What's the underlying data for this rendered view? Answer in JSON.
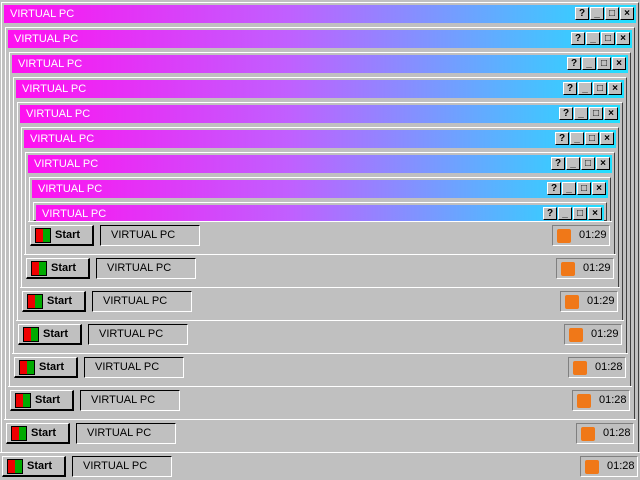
{
  "windows": [
    {
      "title": "VIRTUAL PC"
    },
    {
      "title": "VIRTUAL PC"
    },
    {
      "title": "VIRTUAL PC"
    },
    {
      "title": "VIRTUAL PC"
    },
    {
      "title": "VIRTUAL PC"
    },
    {
      "title": "VIRTUAL PC"
    },
    {
      "title": "VIRTUAL PC"
    },
    {
      "title": "VIRTUAL PC"
    },
    {
      "title": "VIRTUAL PC"
    }
  ],
  "taskbars": [
    {
      "start": "Start",
      "task": "VIRTUAL PC",
      "time": "01:29"
    },
    {
      "start": "Start",
      "task": "VIRTUAL PC",
      "time": "01:29"
    },
    {
      "start": "Start",
      "task": "VIRTUAL PC",
      "time": "01:29"
    },
    {
      "start": "Start",
      "task": "VIRTUAL PC",
      "time": "01:29"
    },
    {
      "start": "Start",
      "task": "VIRTUAL PC",
      "time": "01:28"
    },
    {
      "start": "Start",
      "task": "VIRTUAL PC",
      "time": "01:28"
    },
    {
      "start": "Start",
      "task": "VIRTUAL PC",
      "time": "01:28"
    },
    {
      "start": "Start",
      "task": "VIRTUAL PC",
      "time": "01:28"
    }
  ]
}
